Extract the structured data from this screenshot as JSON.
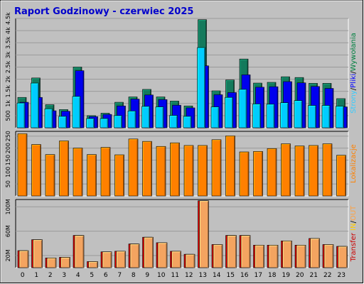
{
  "chart_data": {
    "type": "bar",
    "title": "Raport Godzinowy -  czerwiec 2025",
    "categories": [
      "0",
      "1",
      "2",
      "3",
      "4",
      "5",
      "6",
      "7",
      "8",
      "9",
      "10",
      "11",
      "12",
      "13",
      "14",
      "15",
      "16",
      "17",
      "18",
      "19",
      "20",
      "21",
      "22",
      "23"
    ],
    "panels": [
      {
        "id": "hits",
        "tick_labels": [
          "4.5k",
          "4k",
          "3.5k",
          "3k",
          "2.5k",
          "2k",
          "1.5k",
          "1k",
          "500"
        ],
        "tick_values": [
          4500,
          4000,
          3500,
          3000,
          2500,
          2000,
          1500,
          1000,
          500
        ],
        "ylim": [
          0,
          4500
        ],
        "side_label_parts": [
          {
            "text": "Strony",
            "color": "#33ccff"
          },
          {
            "text": "/",
            "color": "#000000"
          },
          {
            "text": "Pliki",
            "color": "#0000ff"
          },
          {
            "text": "/",
            "color": "#000000"
          },
          {
            "text": "Wywołania",
            "color": "#008040"
          }
        ],
        "series": [
          {
            "name": "Wywołania",
            "color": "#147a5c",
            "values": [
              1250,
              2050,
              950,
              750,
              2500,
              500,
              600,
              1050,
              1270,
              1580,
              1270,
              1100,
              900,
              4450,
              1520,
              1970,
              2830,
              1840,
              1870,
              2100,
              2070,
              1830,
              1830,
              1200
            ]
          },
          {
            "name": "Pliki",
            "color": "#0000ee",
            "values": [
              1050,
              1250,
              700,
              680,
              2350,
              460,
              550,
              900,
              1180,
              1350,
              1160,
              930,
              820,
              2550,
              1360,
              1450,
              2180,
              1670,
              1690,
              1900,
              1850,
              1700,
              1620,
              860
            ]
          },
          {
            "name": "Strony",
            "color": "#00ccff",
            "values": [
              1020,
              1840,
              780,
              470,
              1290,
              380,
              380,
              500,
              690,
              880,
              860,
              510,
              470,
              3300,
              860,
              1250,
              1580,
              980,
              970,
              1030,
              1120,
              920,
              920,
              890
            ]
          }
        ]
      },
      {
        "id": "visits",
        "tick_labels": [
          "250",
          "200",
          "150",
          "100",
          "50"
        ],
        "tick_values": [
          250,
          200,
          150,
          100,
          50
        ],
        "ylim": [
          0,
          270
        ],
        "side_label_parts": [
          {
            "text": "Lokalizacje",
            "color": "#ff8000"
          }
        ],
        "series": [
          {
            "name": "Lokalizacje",
            "color": "#ff8000",
            "values": [
              260,
              215,
              173,
              230,
              200,
              173,
              203,
              172,
              238,
              228,
              207,
              222,
              211,
              211,
              235,
              251,
              184,
              186,
              198,
              218,
              209,
              211,
              218,
              170
            ]
          }
        ]
      },
      {
        "id": "transfer",
        "tick_labels": [
          "100M",
          "60M",
          "20M"
        ],
        "tick_values": [
          100,
          60,
          20
        ],
        "ylim": [
          0,
          112
        ],
        "side_label_parts": [
          {
            "text": "Transfer",
            "color": "#cc0000"
          },
          {
            "text": " ",
            "color": "#000000"
          },
          {
            "text": "IN",
            "color": "#ffcc00"
          },
          {
            "text": "/",
            "color": "#000000"
          },
          {
            "text": "OUT",
            "color": "#ffa040"
          }
        ],
        "series": [
          {
            "name": "IN",
            "color": "#cc0000",
            "values": [
              28,
              46,
              16,
              17,
              53,
              10,
              26,
              27,
              39,
              50,
              41,
              27,
              22,
              110,
              38,
              53,
              53,
              37,
              37,
              44,
              37,
              48,
              38,
              35
            ]
          },
          {
            "name": "OUT",
            "color": "#f4a460",
            "values": [
              28,
              46,
              16,
              17,
              53,
              10,
              26,
              27,
              39,
              50,
              41,
              27,
              22,
              110,
              38,
              53,
              53,
              37,
              37,
              44,
              37,
              48,
              38,
              35
            ]
          }
        ]
      }
    ],
    "colors": {
      "background": "#ffffff",
      "frame": "#c0c0c0",
      "plot_background": "#c0c0c0",
      "title": "#0000cc"
    }
  }
}
